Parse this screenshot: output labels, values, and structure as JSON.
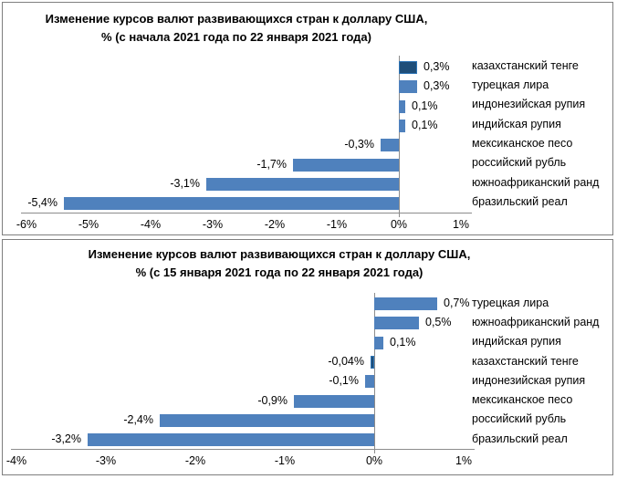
{
  "page": {
    "background": "#ffffff",
    "panel_border_color": "#7f7f7f"
  },
  "colors": {
    "bar": "#4F81BD",
    "highlight_fill": "#1F4E79",
    "highlight_border": "#2E75B6",
    "axis_line": "#8c8c8c",
    "text": "#000000"
  },
  "chart_data": [
    {
      "type": "bar",
      "orientation": "horizontal",
      "title": "Изменение курсов валют развивающихся стран к доллару США, % (с начала 2021 года по 22 января 2021 года)",
      "categories": [
        "казахстанский тенге",
        "турецкая лира",
        "индонезийская рупия",
        "индийская рупия",
        "мексиканское песо",
        "российский рубль",
        "южноафриканский ранд",
        "бразильский реал"
      ],
      "values": [
        0.3,
        0.3,
        0.1,
        0.1,
        -0.3,
        -1.7,
        -3.1,
        -5.4
      ],
      "value_labels": [
        "0,3%",
        "0,3%",
        "0,1%",
        "0,1%",
        "-0,3%",
        "-1,7%",
        "-3,1%",
        "-5,4%"
      ],
      "highlight_index": 0,
      "xlim": [
        -6,
        1
      ],
      "tick_values": [
        -6,
        -5,
        -4,
        -3,
        -2,
        -1,
        0,
        1
      ],
      "tick_labels": [
        "-6%",
        "-5%",
        "-4%",
        "-3%",
        "-2%",
        "-1%",
        "0%",
        "1%"
      ],
      "grid": "none",
      "legend": "none",
      "category_labels_position": "right",
      "value_axis_position": "bottom"
    },
    {
      "type": "bar",
      "orientation": "horizontal",
      "title": "Изменение курсов валют развивающихся стран к доллару США, % (с 15 января 2021 года по 22 января 2021 года)",
      "categories": [
        "турецкая лира",
        "южноафриканский ранд",
        "индийская рупия",
        "казахстанский тенге",
        "индонезийская рупия",
        "мексиканское песо",
        "российский рубль",
        "бразильский реал"
      ],
      "values": [
        0.7,
        0.5,
        0.1,
        -0.04,
        -0.1,
        -0.9,
        -2.4,
        -3.2
      ],
      "value_labels": [
        "0,7%",
        "0,5%",
        "0,1%",
        "-0,04%",
        "-0,1%",
        "-0,9%",
        "-2,4%",
        "-3,2%"
      ],
      "highlight_index": 3,
      "xlim": [
        -4,
        1
      ],
      "tick_values": [
        -4,
        -3,
        -2,
        -1,
        0,
        1
      ],
      "tick_labels": [
        "-4%",
        "-3%",
        "-2%",
        "-1%",
        "0%",
        "1%"
      ],
      "grid": "none",
      "legend": "none",
      "category_labels_position": "right",
      "value_axis_position": "bottom"
    }
  ]
}
